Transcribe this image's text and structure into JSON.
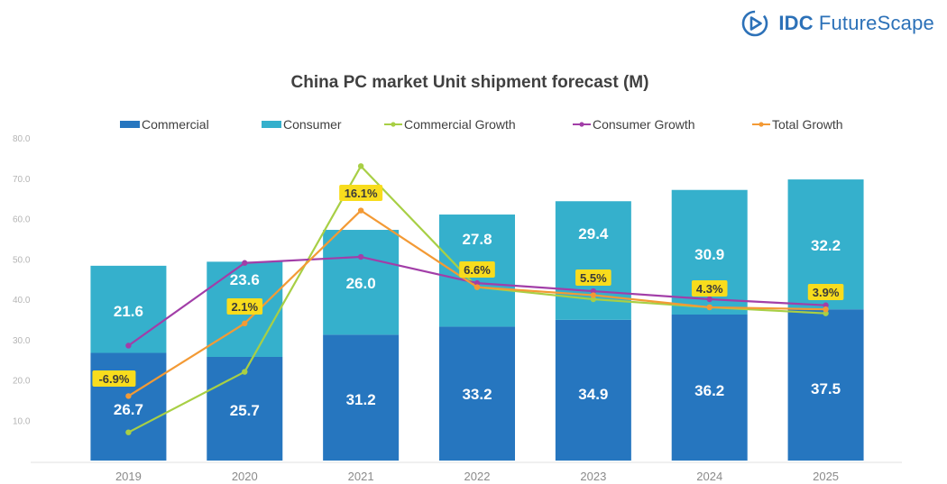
{
  "brand": {
    "name_bold": "IDC",
    "name_rest": "FutureScape",
    "logo_icon": "idc-play-circle-icon",
    "color": "#2c71b8"
  },
  "chart_data": {
    "type": "bar",
    "title": "China PC market Unit shipment forecast (M)",
    "categories": [
      "2019",
      "2020",
      "2021",
      "2022",
      "2023",
      "2024",
      "2025"
    ],
    "stacked": true,
    "ylim": [
      0,
      80
    ],
    "yticks": [
      "",
      "10.0",
      "20.0",
      "30.0",
      "40.0",
      "50.0",
      "60.0",
      "70.0",
      "80.0"
    ],
    "ytick_values": [
      0,
      10,
      20,
      30,
      40,
      50,
      60,
      70,
      80
    ],
    "grid": false,
    "legend_position": "top",
    "series": [
      {
        "name": "Commercial",
        "type": "bar",
        "color": "#2676bf",
        "values": [
          26.7,
          25.7,
          31.2,
          33.2,
          34.9,
          36.2,
          37.5
        ],
        "labels": [
          "26.7",
          "25.7",
          "31.2",
          "33.2",
          "34.9",
          "36.2",
          "37.5"
        ]
      },
      {
        "name": "Consumer",
        "type": "bar",
        "color": "#35b0cc",
        "values": [
          21.6,
          23.6,
          26.0,
          27.8,
          29.4,
          30.9,
          32.2
        ],
        "labels": [
          "21.6",
          "23.6",
          "26.0",
          "27.8",
          "29.4",
          "30.9",
          "32.2"
        ]
      },
      {
        "name": "Commercial Growth",
        "type": "line",
        "color": "#a8cf45",
        "values": [
          7,
          22,
          73,
          43,
          40,
          38,
          36.5
        ]
      },
      {
        "name": "Consumer Growth",
        "type": "line",
        "color": "#a23ea8",
        "values": [
          28.5,
          49,
          50.5,
          44,
          42,
          40,
          38.5
        ]
      },
      {
        "name": "Total Growth",
        "type": "line",
        "color": "#f39a35",
        "values": [
          16,
          34,
          62,
          43,
          41,
          38,
          37.5
        ],
        "labels": [
          "-6.9%",
          "2.1%",
          "16.1%",
          "6.6%",
          "5.5%",
          "4.3%",
          "3.9%"
        ]
      }
    ]
  }
}
